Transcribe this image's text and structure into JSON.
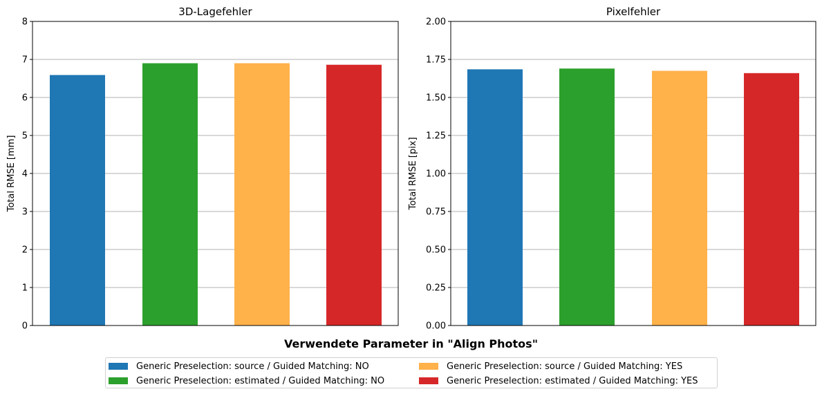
{
  "chart_data": [
    {
      "type": "bar",
      "title": "3D-Lagefehler",
      "xlabel": "",
      "ylabel": "Total RMSE [mm]",
      "ylim": [
        0,
        8
      ],
      "yticks": [
        0,
        1,
        2,
        3,
        4,
        5,
        6,
        7,
        8
      ],
      "ytick_labels": [
        "0",
        "1",
        "2",
        "3",
        "4",
        "5",
        "6",
        "7",
        "8"
      ],
      "grid": "horizontal",
      "categories": [
        "Generic Preselection: source / Guided Matching: NO",
        "Generic Preselection: estimated / Guided Matching: NO",
        "Generic Preselection: source / Guided Matching: YES",
        "Generic Preselection: estimated / Guided Matching: YES"
      ],
      "values": [
        6.59,
        6.9,
        6.9,
        6.86
      ],
      "colors": [
        "#1f77b4",
        "#2ca02c",
        "#ffb14a",
        "#d62728"
      ]
    },
    {
      "type": "bar",
      "title": "Pixelfehler",
      "xlabel": "",
      "ylabel": "Total RMSE [pix]",
      "ylim": [
        0,
        2
      ],
      "yticks": [
        0,
        0.25,
        0.5,
        0.75,
        1.0,
        1.25,
        1.5,
        1.75,
        2.0
      ],
      "ytick_labels": [
        "0.00",
        "0.25",
        "0.50",
        "0.75",
        "1.00",
        "1.25",
        "1.50",
        "1.75",
        "2.00"
      ],
      "grid": "horizontal",
      "categories": [
        "Generic Preselection: source / Guided Matching: NO",
        "Generic Preselection: estimated / Guided Matching: NO",
        "Generic Preselection: source / Guided Matching: YES",
        "Generic Preselection: estimated / Guided Matching: YES"
      ],
      "values": [
        1.685,
        1.69,
        1.675,
        1.66
      ],
      "colors": [
        "#1f77b4",
        "#2ca02c",
        "#ffb14a",
        "#d62728"
      ]
    }
  ],
  "legend": {
    "title": "Verwendete Parameter in \"Align Photos\"",
    "placement": "bottom-center",
    "items": [
      {
        "label": "Generic Preselection: source / Guided Matching: NO",
        "color": "#1f77b4"
      },
      {
        "label": "Generic Preselection: estimated / Guided Matching: NO",
        "color": "#2ca02c"
      },
      {
        "label": "Generic Preselection: source / Guided Matching: YES",
        "color": "#ffb14a"
      },
      {
        "label": "Generic Preselection: estimated / Guided Matching: YES",
        "color": "#d62728"
      }
    ]
  }
}
